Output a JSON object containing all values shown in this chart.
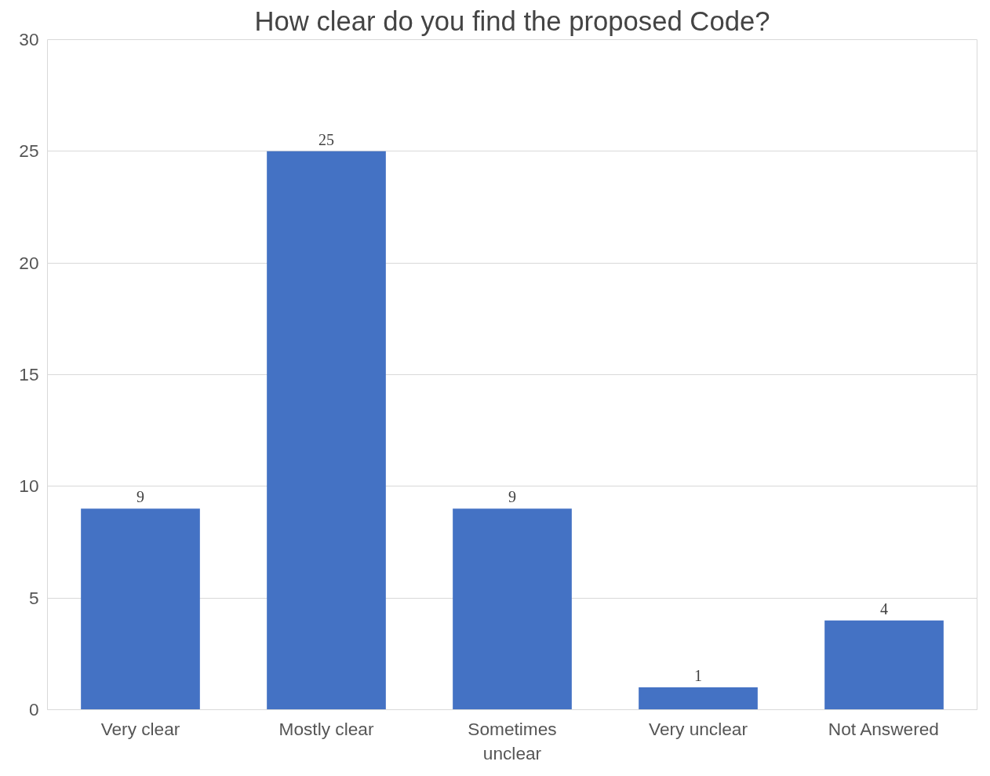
{
  "chart_data": {
    "type": "bar",
    "title": "How clear do you find the proposed Code?",
    "categories": [
      "Very clear",
      "Mostly clear",
      "Sometimes unclear",
      "Very unclear",
      "Not Answered"
    ],
    "values": [
      9,
      25,
      9,
      1,
      4
    ],
    "color": "#4472c4",
    "ylim": [
      0,
      30
    ],
    "yticks": [
      0,
      5,
      10,
      15,
      20,
      25,
      30
    ],
    "grid": "y",
    "data_labels": true
  }
}
